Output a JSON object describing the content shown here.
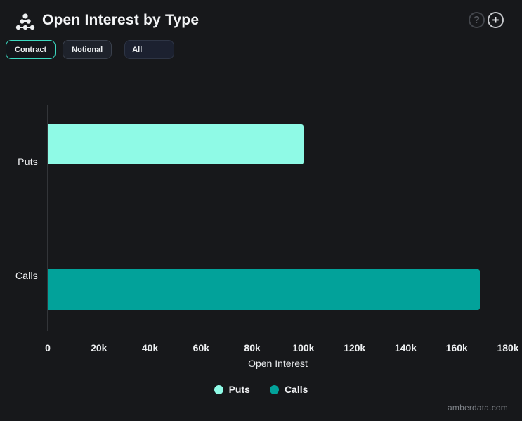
{
  "header": {
    "title": "Open Interest by Type",
    "help_glyph": "?",
    "add_glyph": "+"
  },
  "controls": {
    "contract_label": "Contract",
    "notional_label": "Notional",
    "filter_value": "All"
  },
  "chart_data": {
    "type": "bar",
    "orientation": "horizontal",
    "categories": [
      "Puts",
      "Calls"
    ],
    "series": [
      {
        "name": "Puts",
        "value": 100000,
        "color": "#8ffae6"
      },
      {
        "name": "Calls",
        "value": 169000,
        "color": "#02a29a"
      }
    ],
    "xlabel": "Open Interest",
    "ylabel": "",
    "xlim": [
      0,
      180000
    ],
    "x_ticks": [
      "0",
      "20k",
      "40k",
      "60k",
      "80k",
      "100k",
      "120k",
      "140k",
      "160k",
      "180k"
    ],
    "grid": false,
    "legend": [
      "Puts",
      "Calls"
    ],
    "legend_position": "bottom"
  },
  "colors": {
    "background": "#17181b",
    "puts": "#8ffae6",
    "calls": "#02a29a",
    "contract_border": "#3cd9c0"
  },
  "footer": {
    "watermark": "amberdata.com"
  }
}
